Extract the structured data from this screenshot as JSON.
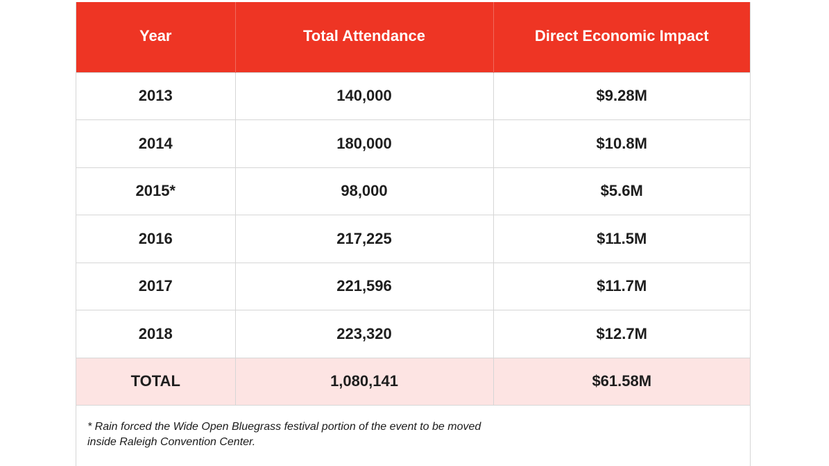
{
  "table": {
    "headers": [
      "Year",
      "Total Attendance",
      "Direct Economic Impact"
    ],
    "rows": [
      [
        "2013",
        "140,000",
        "$9.28M"
      ],
      [
        "2014",
        "180,000",
        "$10.8M"
      ],
      [
        "2015*",
        "98,000",
        "$5.6M"
      ],
      [
        "2016",
        "217,225",
        "$11.5M"
      ],
      [
        "2017",
        "221,596",
        "$11.7M"
      ],
      [
        "2018",
        "223,320",
        "$12.7M"
      ]
    ],
    "total": [
      "TOTAL",
      "1,080,141",
      "$61.58M"
    ]
  },
  "footnote": {
    "line1": "* Rain forced the Wide Open Bluegrass festival portion of the event to be moved",
    "line2": "inside Raleigh Convention Center."
  },
  "colors": {
    "header_bg": "#ee3524",
    "header_text": "#ffffff",
    "total_row_bg": "#fde4e3",
    "grid_line": "#d6d6d6"
  }
}
